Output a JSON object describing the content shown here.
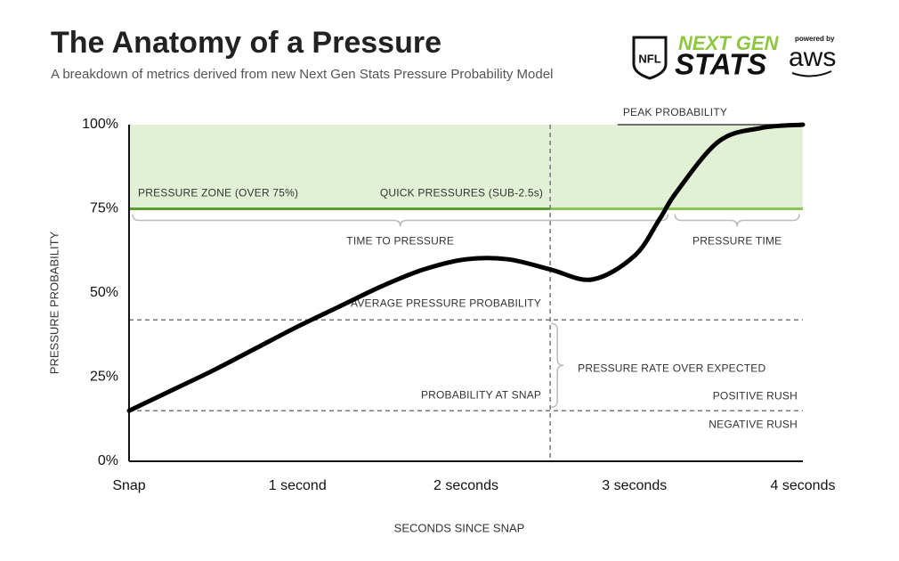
{
  "chart_data": {
    "type": "line",
    "title": "The Anatomy of a Pressure",
    "subtitle": "A breakdown of metrics derived from new Next Gen Stats Pressure Probability Model",
    "x_label": "SECONDS SINCE SNAP",
    "y_label": "PRESSURE PROBABILITY",
    "x": [
      0,
      0.25,
      0.5,
      0.75,
      1,
      1.25,
      1.5,
      1.75,
      2,
      2.25,
      2.5,
      2.75,
      3,
      3.15,
      3.25,
      3.5,
      3.75,
      4
    ],
    "series": [
      {
        "name": "Pressure probability",
        "color": "#000000",
        "values": [
          15,
          21,
          27,
          33.5,
          40,
          46,
          52,
          57,
          60,
          60,
          57,
          54,
          61,
          72,
          80,
          95,
          99,
          100
        ]
      }
    ],
    "xlim": [
      0,
      4
    ],
    "ylim": [
      0,
      100
    ],
    "xticks": [
      {
        "value": 0,
        "label": "Snap"
      },
      {
        "value": 1,
        "label": "1 second"
      },
      {
        "value": 2,
        "label": "2 seconds"
      },
      {
        "value": 3,
        "label": "3 seconds"
      },
      {
        "value": 4,
        "label": "4 seconds"
      }
    ],
    "yticks": [
      {
        "value": 0,
        "label": "0%"
      },
      {
        "value": 25,
        "label": "25%"
      },
      {
        "value": 50,
        "label": "50%"
      },
      {
        "value": 75,
        "label": "75%"
      },
      {
        "value": 100,
        "label": "100%"
      }
    ],
    "pressure_zone": {
      "label": "PRESSURE ZONE (OVER 75%)",
      "value": 75,
      "fill": "#e2f0d6",
      "color": "#5c9b2e",
      "color_after": "#8dc45a"
    },
    "quick_pressures": {
      "label": "QUICK PRESSURES (SUB-2.5s)",
      "value": 2.5
    },
    "peak_probability": {
      "label": "PEAK PROBABILITY",
      "value": 100,
      "start": 2.9
    },
    "time_to_pressure": {
      "label": "TIME TO PRESSURE",
      "start": 0,
      "end": 3.22
    },
    "pressure_time": {
      "label": "PRESSURE TIME",
      "start": 3.22,
      "end": 4
    },
    "average_pressure_probability": {
      "label": "AVERAGE PRESSURE PROBABILITY",
      "value": 42
    },
    "probability_at_snap": {
      "label": "PROBABILITY AT SNAP",
      "value": 15
    },
    "pressure_rate_over_expected": {
      "label": "PRESSURE RATE OVER EXPECTED"
    },
    "positive_rush": {
      "label": "POSITIVE RUSH"
    },
    "negative_rush": {
      "label": "NEGATIVE RUSH"
    }
  },
  "branding": {
    "league": "NFL",
    "product_line1": "NEXT GEN",
    "product_line2": "STATS",
    "powered_by": "powered by",
    "partner": "aws"
  }
}
